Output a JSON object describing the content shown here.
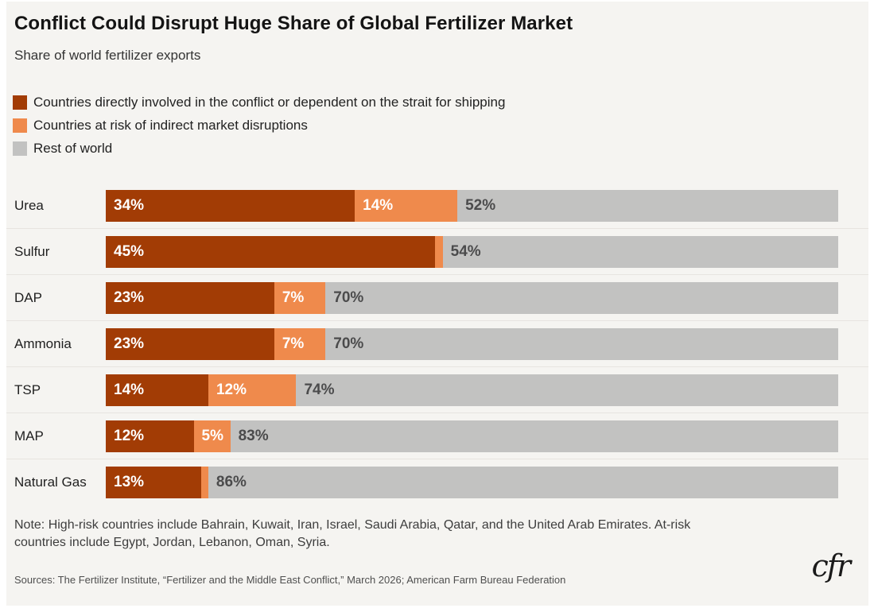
{
  "page": {
    "background": "#FFFFFF",
    "panel_background": "#F5F4F1"
  },
  "header": {
    "title": "Conflict Could Disrupt Huge Share of Global Fertilizer Market",
    "subtitle": "Share of world fertilizer exports"
  },
  "colors": {
    "direct": "#A23C05",
    "indirect": "#EF8A4C",
    "rest": "#C2C2C1",
    "value_label_light": "#FFFFFF",
    "value_label_dark": "#4B4B4C",
    "separator": "#E7E4E0"
  },
  "legend": [
    {
      "key": "direct",
      "label": "Countries directly involved in the conflict or dependent on the strait for shipping"
    },
    {
      "key": "indirect",
      "label": "Countries at risk of indirect market disruptions"
    },
    {
      "key": "rest",
      "label": "Rest of world"
    }
  ],
  "chart_data": {
    "type": "bar",
    "orientation": "horizontal",
    "stacked": true,
    "unit": "%",
    "xlim": [
      0,
      100
    ],
    "grid": false,
    "legend_position": "top-left",
    "label_format": "{v}%",
    "min_label_value": 3,
    "categories": [
      "Urea",
      "Sulfur",
      "DAP",
      "Ammonia",
      "TSP",
      "MAP",
      "Natural Gas"
    ],
    "series": [
      {
        "name": "Countries directly involved in the conflict or dependent on the strait for shipping",
        "key": "direct",
        "values": [
          34,
          45,
          23,
          23,
          14,
          12,
          13
        ]
      },
      {
        "name": "Countries at risk of indirect market disruptions",
        "key": "indirect",
        "values": [
          14,
          1,
          7,
          7,
          12,
          5,
          1
        ]
      },
      {
        "name": "Rest of world",
        "key": "rest",
        "values": [
          52,
          54,
          70,
          70,
          74,
          83,
          86
        ]
      }
    ]
  },
  "footer": {
    "note": "Note: High-risk countries include Bahrain, Kuwait, Iran, Israel, Saudi Arabia, Qatar, and the United Arab Emirates. At-risk countries include Egypt, Jordan, Lebanon, Oman, Syria.",
    "sources": "Sources: The Fertilizer Institute, “Fertilizer and the Middle East Conflict,” March 2026; American Farm Bureau Federation",
    "logo": "cfr"
  }
}
